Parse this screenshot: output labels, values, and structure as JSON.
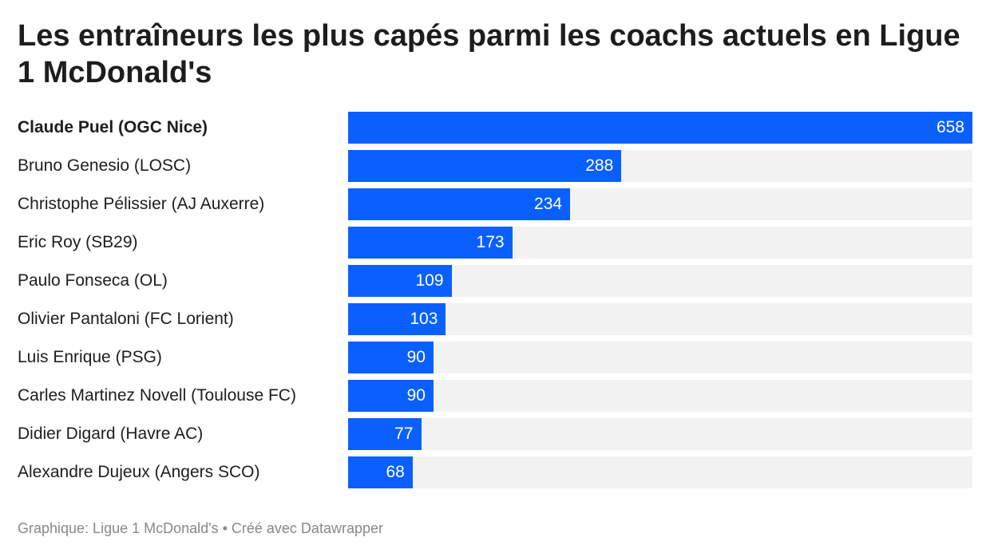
{
  "chart_data": {
    "type": "bar",
    "orientation": "horizontal",
    "title": "Les entraîneurs les plus capés parmi les coachs actuels en Ligue 1 McDonald's",
    "categories": [
      "Claude Puel (OGC Nice)",
      "Bruno Genesio (LOSC)",
      "Christophe Pélissier (AJ Auxerre)",
      "Eric Roy (SB29)",
      "Paulo Fonseca (OL)",
      "Olivier Pantaloni (FC Lorient)",
      "Luis Enrique (PSG)",
      "Carles Martinez Novell (Toulouse FC)",
      "Didier Digard (Havre AC)",
      "Alexandre Dujeux (Angers SCO)"
    ],
    "values": [
      658,
      288,
      234,
      173,
      109,
      103,
      90,
      90,
      77,
      68
    ],
    "value_labels": [
      "658",
      "288",
      "234",
      "173",
      "109",
      "103",
      "90",
      "90",
      "77",
      "68"
    ],
    "xlim": [
      0,
      658
    ],
    "bold_category": "Claude Puel (OGC Nice)",
    "bar_color": "#0a60ff",
    "track_color": "#f2f2f2",
    "grid": false
  },
  "footer": "Graphique: Ligue 1 McDonald's • Créé avec Datawrapper"
}
